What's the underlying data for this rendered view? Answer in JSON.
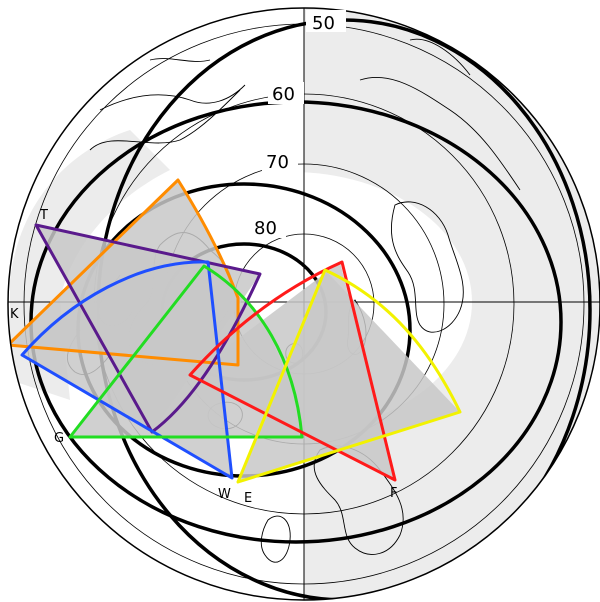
{
  "map": {
    "latitude_labels": [
      "50",
      "60",
      "70",
      "80"
    ],
    "region_labels": [
      "T",
      "K",
      "G",
      "W",
      "E",
      "F"
    ],
    "colors": {
      "ocean": "#ffffff",
      "land_shading": "#ececec",
      "coverage_fill": "#c8c8c8",
      "graticule": "#000000",
      "thick_rings": "#000000",
      "orange_region": "#ff8c00",
      "purple_region": "#5a1a8c",
      "blue_region": "#1f4fff",
      "green_region": "#22dd22",
      "red_region": "#ff1a1a",
      "yellow_region": "#f2f200"
    }
  }
}
